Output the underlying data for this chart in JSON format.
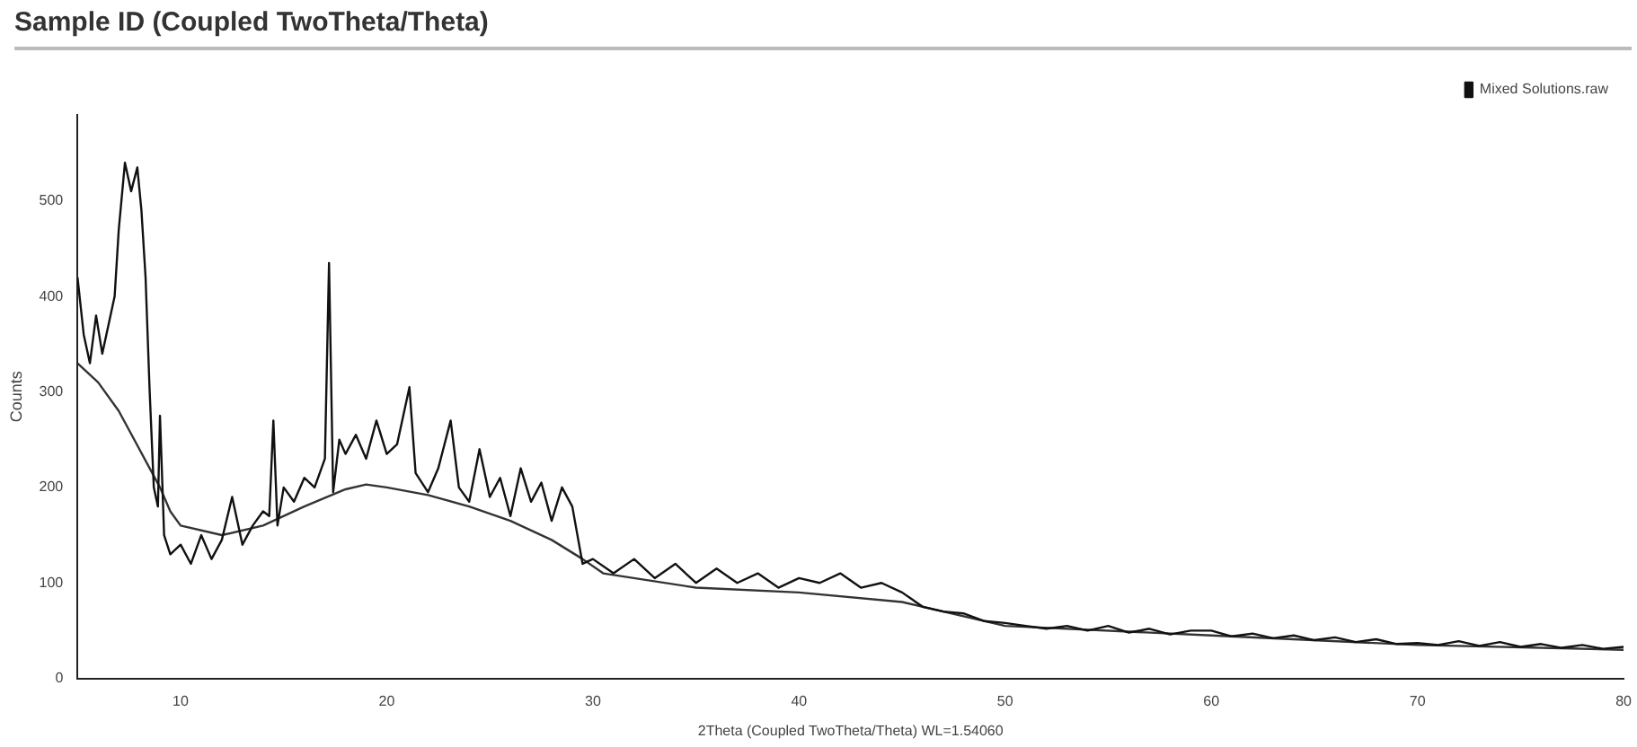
{
  "chart_data": {
    "type": "line",
    "title": "Sample ID (Coupled TwoTheta/Theta)",
    "xlabel": "2Theta (Coupled TwoTheta/Theta) WL=1.54060",
    "ylabel": "Counts",
    "xlim": [
      5,
      80
    ],
    "xticks": [
      10,
      20,
      30,
      40,
      50,
      60,
      70,
      80
    ],
    "ylim": [
      0,
      590
    ],
    "yticks": [
      0,
      100,
      200,
      300,
      400,
      500
    ],
    "grid": false,
    "legend": "top right",
    "marker": "none",
    "line_style": "solid",
    "series": [
      {
        "name": "Mixed Solutions.raw",
        "color": "#111111",
        "x": [
          5,
          5.3,
          5.6,
          5.9,
          6.2,
          6.5,
          6.8,
          7,
          7.3,
          7.6,
          7.9,
          8.1,
          8.3,
          8.5,
          8.7,
          8.9,
          9,
          9.2,
          9.5,
          10,
          10.5,
          11,
          11.5,
          12,
          12.5,
          13,
          13.5,
          14,
          14.3,
          14.5,
          14.7,
          15,
          15.5,
          16,
          16.5,
          17,
          17.2,
          17.4,
          17.7,
          18,
          18.5,
          19,
          19.5,
          20,
          20.5,
          21.1,
          21.4,
          22,
          22.5,
          23.1,
          23.5,
          24,
          24.5,
          25,
          25.5,
          26,
          26.5,
          27,
          27.5,
          28,
          28.5,
          29,
          29.5,
          30,
          31,
          32,
          33,
          34,
          35,
          36,
          37,
          38,
          39,
          40,
          41,
          42,
          43,
          44,
          45,
          46,
          47,
          48,
          49,
          50,
          51,
          52,
          53,
          54,
          55,
          56,
          57,
          58,
          59,
          60,
          61,
          62,
          63,
          64,
          65,
          66,
          67,
          68,
          69,
          70,
          71,
          72,
          73,
          74,
          75,
          76,
          77,
          78,
          79,
          80
        ],
        "values": [
          420,
          360,
          330,
          380,
          340,
          370,
          400,
          470,
          540,
          510,
          535,
          490,
          420,
          300,
          200,
          180,
          275,
          150,
          130,
          140,
          120,
          150,
          125,
          145,
          190,
          140,
          160,
          175,
          170,
          270,
          160,
          200,
          185,
          210,
          200,
          230,
          435,
          195,
          250,
          235,
          255,
          230,
          270,
          235,
          245,
          305,
          215,
          195,
          220,
          270,
          200,
          185,
          240,
          190,
          210,
          170,
          220,
          185,
          205,
          165,
          200,
          180,
          120,
          125,
          110,
          125,
          105,
          120,
          100,
          115,
          100,
          110,
          95,
          105,
          100,
          110,
          95,
          100,
          90,
          75,
          70,
          68,
          60,
          58,
          55,
          52,
          55,
          50,
          55,
          48,
          52,
          46,
          50,
          50,
          44,
          47,
          42,
          45,
          40,
          43,
          38,
          41,
          36,
          37,
          35,
          39,
          34,
          38,
          33,
          36,
          32,
          35,
          31,
          33
        ]
      },
      {
        "color": "#333333",
        "x": [
          5,
          6,
          7,
          8,
          9,
          9.5,
          10,
          12,
          14,
          16,
          18,
          19,
          20,
          22,
          24,
          26,
          28,
          29.5,
          30.5,
          35,
          40,
          45,
          50,
          60,
          70,
          80
        ],
        "values": [
          330,
          310,
          280,
          240,
          200,
          175,
          160,
          150,
          160,
          180,
          198,
          203,
          200,
          192,
          180,
          165,
          145,
          125,
          110,
          95,
          90,
          80,
          55,
          45,
          35,
          30
        ]
      }
    ]
  }
}
